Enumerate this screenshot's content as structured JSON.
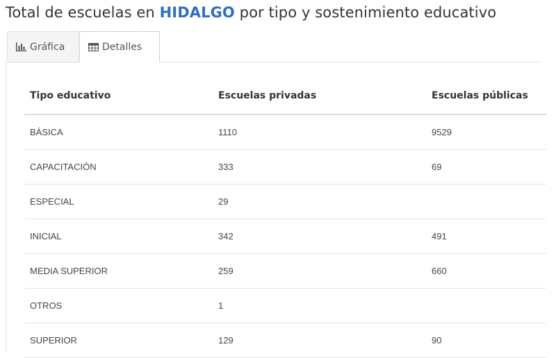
{
  "header": {
    "title_prefix": "Total de escuelas en ",
    "state": "HIDALGO",
    "title_suffix": " por tipo y sostenimiento educativo"
  },
  "tabs": [
    {
      "label": "Gráfica",
      "icon": "bar-chart-icon",
      "active": false
    },
    {
      "label": "Detalles",
      "icon": "table-icon",
      "active": true
    }
  ],
  "table": {
    "headers": [
      "Tipo educativo",
      "Escuelas privadas",
      "Escuelas públicas"
    ],
    "rows": [
      [
        "BÁSICA",
        "1110",
        "9529"
      ],
      [
        "CAPACITACIÓN",
        "333",
        "69"
      ],
      [
        "ESPECIAL",
        "29",
        ""
      ],
      [
        "INICIAL",
        "342",
        "491"
      ],
      [
        "MEDIA SUPERIOR",
        "259",
        "660"
      ],
      [
        "OTROS",
        "1",
        ""
      ],
      [
        "SUPERIOR",
        "129",
        "90"
      ]
    ]
  },
  "colors": {
    "state_highlight": "#2f6fc0",
    "text": "#333333"
  }
}
